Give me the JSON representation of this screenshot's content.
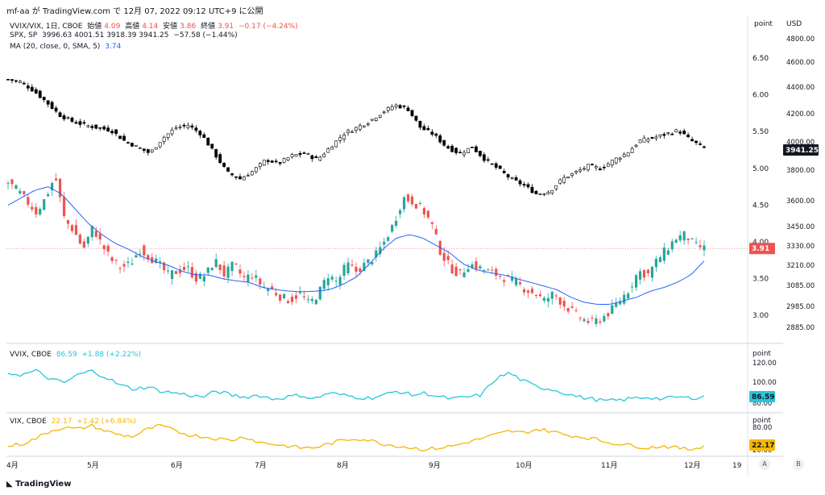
{
  "header": "mf-aa が TradingView.com で 12月 07, 2022 09:12 UTC+9 に公開",
  "footer": "TradingView",
  "legend": {
    "main": {
      "symbol": "VVIX/VIX, 1日, CBOE",
      "o_label": "始値",
      "o": "4.09",
      "h_label": "高値",
      "h": "4.14",
      "l_label": "安値",
      "l": "3.86",
      "c_label": "終値",
      "c": "3.91",
      "chg": "−0.17 (−4.24%)"
    },
    "spx": {
      "symbol": "SPX, SP",
      "values": "3996.63  4001.51  3918.39  3941.25",
      "chg": "−57.58 (−1.44%)"
    },
    "ma": {
      "label": "MA (20, close, 0, SMA, 5)",
      "value": "3.74"
    },
    "vvix": {
      "label": "VVIX, CBOE",
      "value": "86.59",
      "chg": "+1.88 (+2.22%)"
    },
    "vix": {
      "label": "VIX, CBOE",
      "value": "22.17",
      "chg": "+1.42 (+6.84%)"
    }
  },
  "axes": {
    "point_label": "point",
    "usd_label": "USD",
    "main_ticks": [
      "6.50",
      "6.00",
      "5.50",
      "5.00",
      "4.50",
      "4.00",
      "3.50",
      "3.00"
    ],
    "spx_ticks": [
      "4800.00",
      "4600.00",
      "4400.00",
      "4200.00",
      "4000.00",
      "3800.00",
      "3600.00",
      "3450.00",
      "3330.00",
      "3210.00",
      "3085.00",
      "2985.00",
      "2885.00"
    ],
    "vvix_ticks": [
      "120.00",
      "100.00",
      "80.00"
    ],
    "vix_ticks": [
      "80.00",
      "20.00"
    ],
    "x_ticks": [
      "4月",
      "5月",
      "6月",
      "7月",
      "8月",
      "9月",
      "10月",
      "11月",
      "12月",
      "19"
    ],
    "buttons": [
      "A",
      "B"
    ]
  },
  "badges": {
    "main_last": "3.91",
    "spx_last": "3941.25",
    "vvix_last": "86.59",
    "vix_last": "22.17"
  },
  "colors": {
    "up": "#26a69a",
    "down": "#ef5350",
    "spx": "#000000",
    "ma": "#2962ff",
    "vvix": "#26c6da",
    "vix": "#f5b700"
  },
  "chart_data": {
    "type": "candlestick",
    "dates": [
      "4月",
      "5月",
      "6月",
      "7月",
      "8月",
      "9月",
      "10月",
      "11月",
      "12月"
    ],
    "ratio_close": [
      4.8,
      4.7,
      4.55,
      4.4,
      4.6,
      4.9,
      4.3,
      4.15,
      3.9,
      4.2,
      3.95,
      3.75,
      3.65,
      3.7,
      3.9,
      3.8,
      3.7,
      3.55,
      3.6,
      3.65,
      3.5,
      3.55,
      3.75,
      3.55,
      3.7,
      3.5,
      3.55,
      3.4,
      3.35,
      3.25,
      3.2,
      3.3,
      3.15,
      3.3,
      3.55,
      3.45,
      3.7,
      3.6,
      3.7,
      3.8,
      4.0,
      4.25,
      4.6,
      4.55,
      4.45,
      4.25,
      3.85,
      3.65,
      3.55,
      3.7,
      3.65,
      3.6,
      3.55,
      3.5,
      3.45,
      3.35,
      3.3,
      3.2,
      3.3,
      3.15,
      3.05,
      2.95,
      2.9,
      2.95,
      3.05,
      3.2,
      3.35,
      3.6,
      3.55,
      3.75,
      3.9,
      4.05,
      4.1,
      3.95,
      3.91
    ],
    "ratio_ma": [
      4.5,
      4.6,
      4.7,
      4.75,
      4.65,
      4.45,
      4.25,
      4.1,
      3.98,
      3.9,
      3.8,
      3.73,
      3.68,
      3.6,
      3.55,
      3.55,
      3.5,
      3.47,
      3.45,
      3.38,
      3.35,
      3.33,
      3.32,
      3.33,
      3.35,
      3.42,
      3.52,
      3.7,
      3.9,
      4.05,
      4.1,
      4.05,
      3.95,
      3.85,
      3.7,
      3.62,
      3.58,
      3.55,
      3.5,
      3.45,
      3.4,
      3.35,
      3.25,
      3.18,
      3.15,
      3.15,
      3.2,
      3.25,
      3.33,
      3.38,
      3.45,
      3.55,
      3.74
    ],
    "spx_close": [
      4480,
      4460,
      4390,
      4300,
      4200,
      4150,
      4120,
      4100,
      4080,
      4000,
      3950,
      3900,
      4020,
      4100,
      4120,
      4050,
      3900,
      3750,
      3700,
      3760,
      3850,
      3820,
      3880,
      3900,
      3850,
      3950,
      4050,
      4100,
      4150,
      4220,
      4280,
      4250,
      4100,
      4050,
      3950,
      3900,
      3950,
      3850,
      3780,
      3700,
      3650,
      3580,
      3600,
      3700,
      3750,
      3800,
      3780,
      3850,
      3900,
      4000,
      4020,
      4050,
      4080,
      4000,
      3941
    ]
  }
}
